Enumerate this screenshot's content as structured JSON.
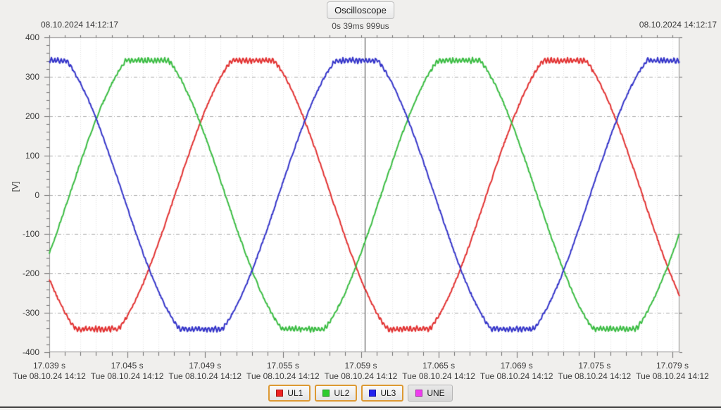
{
  "window": {
    "title": "Oscilloscope",
    "cursor_readout": "0s 39ms 999us",
    "timestamp_left": "08.10.2024 14:12:17",
    "timestamp_right": "08.10.2024 14:12:17"
  },
  "colors": {
    "background": "#f0efed",
    "plot_background": "#ffffff",
    "frame": "#909090",
    "grid_minor": "#e2e2e2",
    "grid_major": "#aaaaaa",
    "tick": "#6e6e6e",
    "cursor": "#3c3c3c",
    "legend_active_border": "#dd9933"
  },
  "chart_data": {
    "type": "line",
    "title": "Oscilloscope",
    "ylabel": "[V]",
    "ylim": [
      -400,
      400
    ],
    "grid": true,
    "legend_position": "bottom",
    "y_axis": {
      "major_step_v": 100,
      "minor_step_v": 20,
      "tick_labels": [
        "400",
        "300",
        "200",
        "100",
        "0",
        "-100",
        "-200",
        "-300",
        "-400"
      ]
    },
    "x_axis": {
      "start_s": 17.039,
      "end_s": 17.0795,
      "minor_tick_ms": 1,
      "label_spacing_ms": 5,
      "labels": [
        {
          "time": "17.039 s",
          "date": "Tue 08.10.24 14:12"
        },
        {
          "time": "17.045 s",
          "date": "Tue 08.10.24 14:12"
        },
        {
          "time": "17.049 s",
          "date": "Tue 08.10.24 14:12"
        },
        {
          "time": "17.055 s",
          "date": "Tue 08.10.24 14:12"
        },
        {
          "time": "17.059 s",
          "date": "Tue 08.10.24 14:12"
        },
        {
          "time": "17.065 s",
          "date": "Tue 08.10.24 14:12"
        },
        {
          "time": "17.069 s",
          "date": "Tue 08.10.24 14:12"
        },
        {
          "time": "17.075 s",
          "date": "Tue 08.10.24 14:12"
        },
        {
          "time": "17.079 s",
          "date": "Tue 08.10.24 14:12"
        }
      ]
    },
    "cursor": {
      "position_fraction": 0.5007,
      "readout": "0s 39ms 999us"
    },
    "series": [
      {
        "name": "UL1",
        "color": "#e23131",
        "legend_color": "#ee2222",
        "waveform": "flat_top_sine",
        "amplitude_v": 375,
        "clip_v": 341,
        "period_ms": 20,
        "peak_time_ms": 13.07,
        "visible": true,
        "active": true,
        "seed": 7
      },
      {
        "name": "UL2",
        "color": "#3abc42",
        "legend_color": "#2ecc2e",
        "waveform": "flat_top_sine",
        "amplitude_v": 375,
        "clip_v": 341,
        "period_ms": 20,
        "peak_time_ms": 6.3,
        "visible": true,
        "active": true,
        "seed": 13
      },
      {
        "name": "UL3",
        "color": "#3434c9",
        "legend_color": "#2222ee",
        "waveform": "flat_top_sine",
        "amplitude_v": 375,
        "clip_v": 341,
        "period_ms": 20,
        "peak_time_ms": 19.73,
        "visible": true,
        "active": true,
        "seed": 29
      },
      {
        "name": "UNE",
        "color": "#ee3bee",
        "legend_color": "#ee3bee",
        "waveform": "flat_top_sine",
        "amplitude_v": 0,
        "clip_v": 0,
        "period_ms": 20,
        "peak_time_ms": 0,
        "visible": false,
        "active": false,
        "seed": 41
      }
    ]
  }
}
